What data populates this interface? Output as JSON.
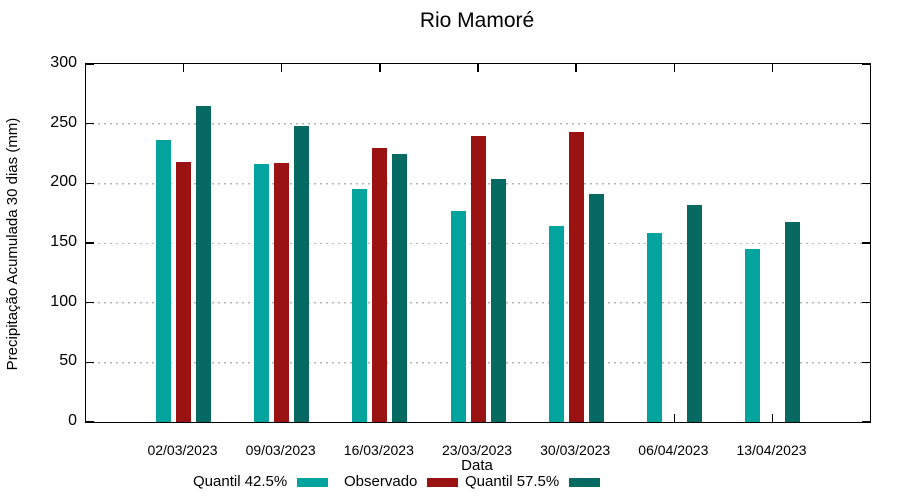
{
  "chart_data": {
    "type": "bar",
    "title": "Rio Mamoré",
    "xlabel": "Data",
    "ylabel": "Precipitação Acumulada 30 dias (mm)",
    "ylim": [
      0,
      300
    ],
    "yticks": [
      0,
      50,
      100,
      150,
      200,
      250,
      300
    ],
    "grid": "horizontal-dotted",
    "grid_color": "#b4b4b4",
    "axis_color": "#000000",
    "legend_position": "below",
    "categories": [
      "02/03/2023",
      "09/03/2023",
      "16/03/2023",
      "23/03/2023",
      "30/03/2023",
      "06/04/2023",
      "13/04/2023"
    ],
    "series": [
      {
        "name": "Quantil 42.5%",
        "color": "#03A39E",
        "values": [
          236,
          216,
          195,
          177,
          164,
          158,
          145
        ]
      },
      {
        "name": "Observado",
        "color": "#9A1212",
        "values": [
          218,
          217,
          230,
          240,
          243,
          null,
          null
        ]
      },
      {
        "name": "Quantil 57.5%",
        "color": "#066A63",
        "values": [
          265,
          248,
          225,
          204,
          191,
          182,
          168
        ]
      }
    ]
  }
}
